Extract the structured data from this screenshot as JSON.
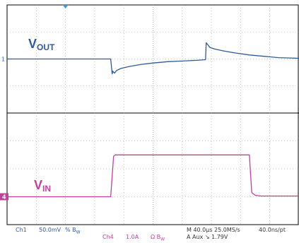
{
  "chart_data": {
    "type": "line",
    "title": "",
    "xlabel": "",
    "ylabel": "",
    "grid": true,
    "x_unit": "div",
    "xlim": [
      0,
      10
    ],
    "series": [
      {
        "name": "VOUT",
        "label_main": "V",
        "label_sub": "OUT",
        "color": "#2e5a9c",
        "ylim": [
          -4,
          4
        ],
        "x": [
          0,
          3.0,
          3.55,
          3.6,
          3.62,
          3.68,
          3.75,
          3.9,
          4.2,
          4.6,
          5.0,
          5.5,
          6.0,
          6.5,
          6.8,
          6.82,
          6.88,
          6.95,
          7.1,
          7.4,
          7.8,
          8.3,
          8.8,
          9.3,
          10.0
        ],
        "y": [
          0,
          0,
          0,
          -1.1,
          -0.9,
          -1.05,
          -0.85,
          -0.7,
          -0.55,
          -0.4,
          -0.3,
          -0.2,
          -0.15,
          -0.1,
          -0.05,
          1.2,
          1.05,
          0.85,
          0.75,
          0.6,
          0.45,
          0.3,
          0.2,
          0.1,
          0.05
        ]
      },
      {
        "name": "VIN",
        "label_main": "V",
        "label_sub": "IN",
        "color": "#c040a0",
        "ylim": [
          -4,
          4
        ],
        "x": [
          0,
          3.55,
          3.65,
          3.7,
          8.3,
          8.38,
          8.5,
          8.7,
          10.0
        ],
        "y": [
          -2.0,
          -2.0,
          0.9,
          1.0,
          1.0,
          -1.7,
          -1.9,
          -1.95,
          -1.95
        ]
      }
    ]
  },
  "markers": {
    "ch1": "1",
    "ch4": "4"
  },
  "readout": {
    "ch1": "Ch1",
    "ch1_scale": "50.0mV",
    "ch1_suffix": "% B",
    "ch1_bw": "W",
    "ch4": "Ch4",
    "ch4_scale": "1.0A",
    "ch4_suffix": "Ω B",
    "ch4_bw": "W",
    "timebase": "M 40.0µs 25.0MS/s",
    "sample": "40.0ns/pt",
    "trigger": "A  Aux  ↘  1.79V"
  },
  "colors": {
    "grid": "#9a9a9a",
    "border": "#000000",
    "ch1": "#2e5a9c",
    "ch4": "#c040a0",
    "trigger_marker": "#3a9ad9"
  }
}
